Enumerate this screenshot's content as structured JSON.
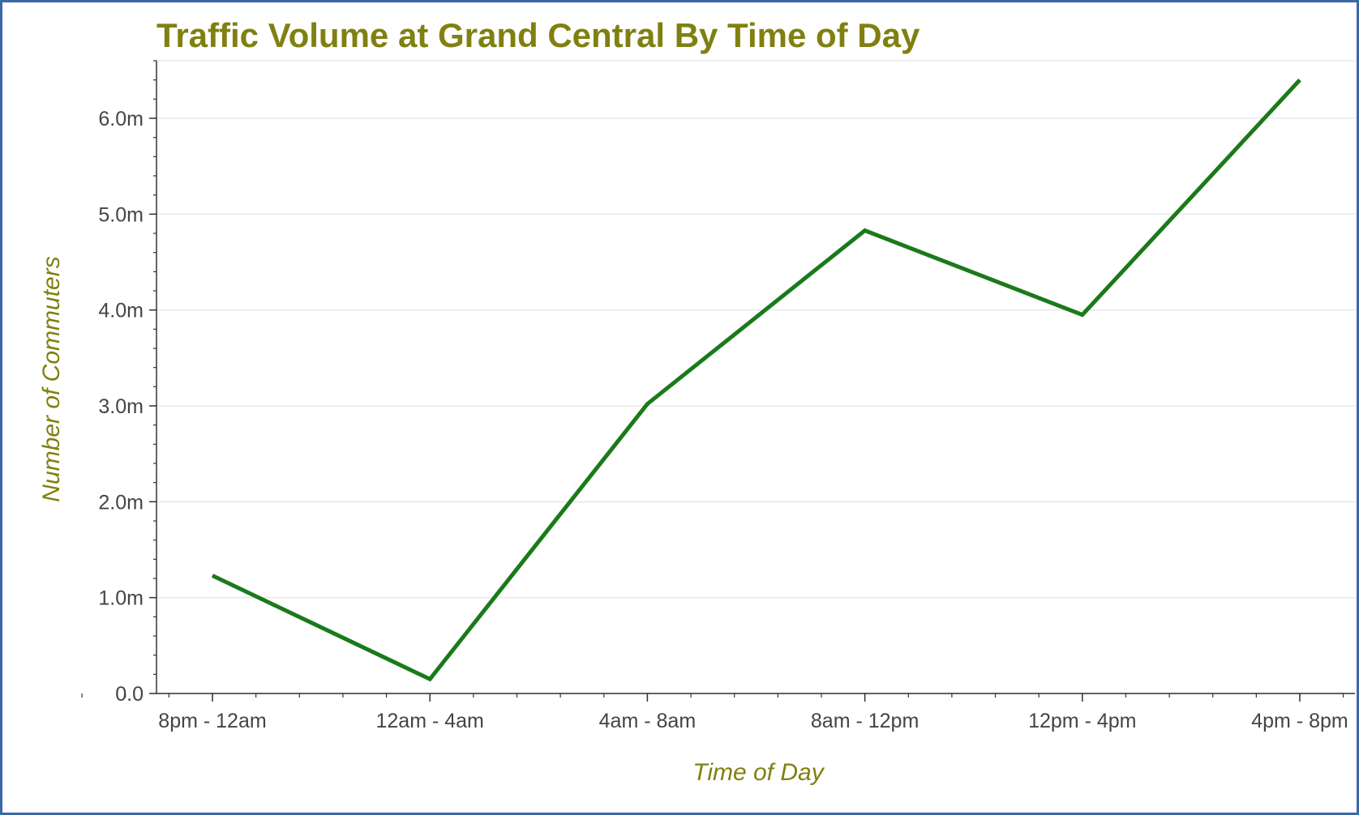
{
  "chart_data": {
    "type": "line",
    "title": "Traffic Volume at Grand Central By Time of Day",
    "xlabel": "Time of Day",
    "ylabel": "Number of Commuters",
    "categories": [
      "8pm - 12am",
      "12am - 4am",
      "4am - 8am",
      "8am - 12pm",
      "12pm - 4pm",
      "4pm - 8pm"
    ],
    "series": [
      {
        "values": [
          1230000,
          150000,
          3020000,
          4830000,
          3950000,
          6400000
        ],
        "color": "#1a7a1a"
      }
    ],
    "ylim": [
      0,
      6600000
    ],
    "yticks": [
      0,
      1000000,
      2000000,
      3000000,
      4000000,
      5000000,
      6000000
    ],
    "ytick_labels": [
      "0.0",
      "1.0m",
      "2.0m",
      "3.0m",
      "4.0m",
      "5.0m",
      "6.0m"
    ],
    "grid": true,
    "legend": "none",
    "colors": {
      "title": "#808010",
      "axis_label": "#808010",
      "grid": "#e8e8e8",
      "axis": "#333333",
      "frame": "#3f67a4"
    }
  }
}
